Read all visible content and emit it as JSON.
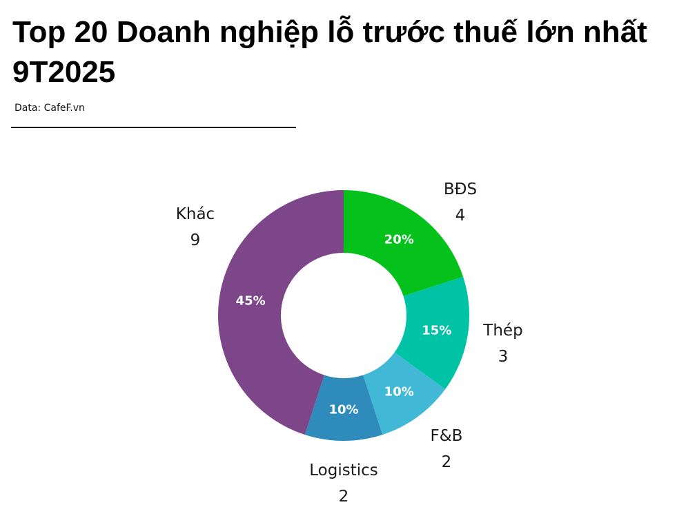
{
  "header": {
    "title": "Top 20 Doanh nghiệp lỗ trước thuế lớn nhất 9T2025",
    "source": "Data: CafeF.vn"
  },
  "chart_data": {
    "type": "pie",
    "variant": "donut",
    "title": "Top 20 Doanh nghiệp lỗ trước thuế lớn nhất 9T2025",
    "categories": [
      "BĐS",
      "Thép",
      "F&B",
      "Logistics",
      "Khác"
    ],
    "values": [
      4,
      3,
      2,
      2,
      9
    ],
    "percent_labels": [
      "20%",
      "15%",
      "10%",
      "10%",
      "45%"
    ],
    "colors": [
      "#04c11c",
      "#00c2a4",
      "#41b8d6",
      "#2e8bbc",
      "#7d4689"
    ],
    "start": "top",
    "direction": "clockwise",
    "legend": "none"
  }
}
